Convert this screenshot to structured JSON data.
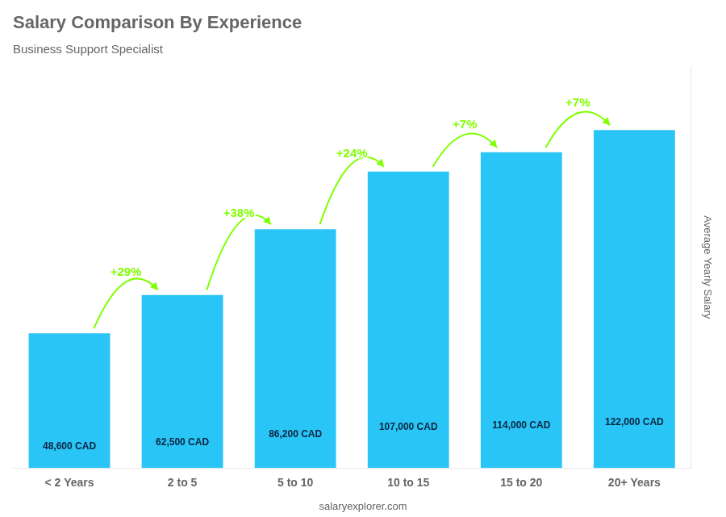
{
  "chart_data": {
    "type": "bar",
    "title": "Salary Comparison By Experience",
    "subtitle": "Business Support Specialist",
    "categories": [
      "< 2 Years",
      "2 to 5",
      "5 to 10",
      "10 to 15",
      "15 to 20",
      "20+ Years"
    ],
    "values": [
      48600,
      62500,
      86200,
      107000,
      114000,
      122000
    ],
    "value_labels": [
      "48,600 CAD",
      "62,500 CAD",
      "86,200 CAD",
      "107,000 CAD",
      "114,000 CAD",
      "122,000 CAD"
    ],
    "data_labels": true,
    "color": "#29c5f6",
    "ylabel": "Average Yearly Salary",
    "ylim": [
      0,
      145000
    ],
    "tick_labels": "x",
    "grid": false,
    "annotations": [
      {
        "text": "+29%",
        "from": "< 2 Years",
        "to": "2 to 5",
        "color": "#7fff00"
      },
      {
        "text": "+38%",
        "from": "2 to 5",
        "to": "5 to 10",
        "color": "#7fff00"
      },
      {
        "text": "+24%",
        "from": "5 to 10",
        "to": "10 to 15",
        "color": "#7fff00"
      },
      {
        "text": "+7%",
        "from": "10 to 15",
        "to": "15 to 20",
        "color": "#7fff00"
      },
      {
        "text": "+7%",
        "from": "15 to 20",
        "to": "20+ Years",
        "color": "#7fff00"
      }
    ],
    "footer": "salaryexplorer.com"
  }
}
